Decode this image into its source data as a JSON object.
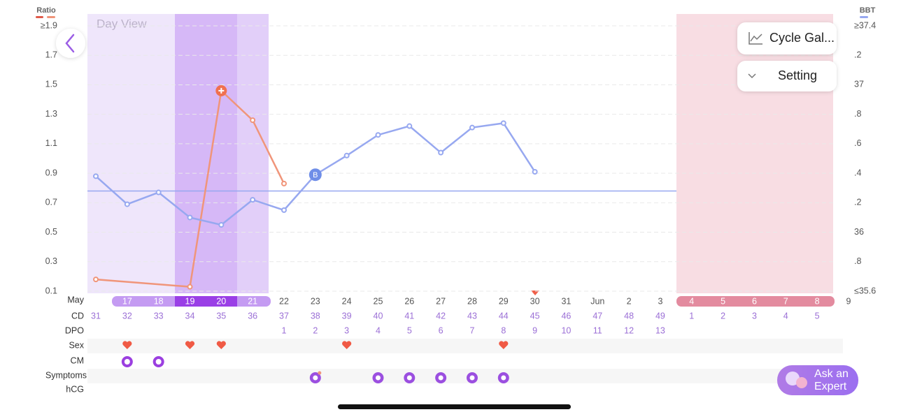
{
  "view_label": "Day View",
  "buttons": {
    "gallery": "Cycle Gal...",
    "setting": "Setting",
    "expert": [
      "Ask an",
      "Expert"
    ]
  },
  "chart_data": {
    "type": "line",
    "ylim": [
      0.1,
      1.9
    ],
    "yticks": [
      {
        "value": 1.9,
        "label": "≥1.9"
      },
      1.7,
      1.5,
      1.3,
      1.1,
      0.9,
      0.7,
      0.5,
      0.3,
      0.1
    ],
    "y2lim": [
      35.6,
      37.4
    ],
    "y2ticks": [
      {
        "value": 37.4,
        "label": "≥37.4"
      },
      {
        "value": 37.2,
        "label": ".2"
      },
      37,
      {
        "value": 36.8,
        "label": ".8"
      },
      {
        "value": 36.6,
        "label": ".6"
      },
      {
        "value": 36.4,
        "label": ".4"
      },
      {
        "value": 36.2,
        "label": ".2"
      },
      36,
      {
        "value": 35.8,
        "label": ".8"
      },
      {
        "value": 35.6,
        "label": "≤35.6"
      }
    ],
    "grid": true,
    "series": [
      {
        "name": "Ratio",
        "color": "#f0957a",
        "x": [
          31,
          34,
          35,
          36,
          37
        ],
        "values": [
          0.18,
          0.13,
          1.46,
          1.26,
          0.83
        ]
      },
      {
        "name": "BBT",
        "color": "#97a8f0",
        "axis": "y2",
        "x": [
          31,
          32,
          33,
          34,
          35,
          36,
          37,
          38,
          39,
          40,
          41,
          42,
          43,
          44,
          45
        ],
        "values": [
          36.38,
          36.19,
          36.27,
          36.1,
          36.05,
          36.22,
          36.15,
          36.39,
          36.52,
          36.66,
          36.72,
          36.54,
          36.71,
          36.74,
          36.41
        ]
      }
    ],
    "coverline": 36.28,
    "ovulation_marker": "B"
  },
  "rows": {
    "month": "May",
    "dates": [
      null,
      17,
      18,
      19,
      20,
      21,
      22,
      23,
      24,
      25,
      26,
      27,
      28,
      29,
      30,
      31,
      "Jun",
      2,
      3,
      4,
      5,
      6,
      7,
      8,
      9
    ],
    "cd_label": "CD",
    "cd": [
      31,
      32,
      33,
      34,
      35,
      36,
      37,
      38,
      39,
      40,
      41,
      42,
      43,
      44,
      45,
      46,
      47,
      48,
      49,
      1,
      2,
      3,
      4,
      5,
      null
    ],
    "dpo_label": "DPO",
    "dpo": [
      null,
      null,
      null,
      null,
      null,
      null,
      1,
      2,
      3,
      4,
      5,
      6,
      7,
      8,
      9,
      10,
      11,
      12,
      13,
      null,
      null,
      null,
      null,
      null,
      null
    ],
    "sex": "Sex",
    "cm": "CM",
    "symptoms": "Symptoms",
    "hcg": "hCG"
  }
}
